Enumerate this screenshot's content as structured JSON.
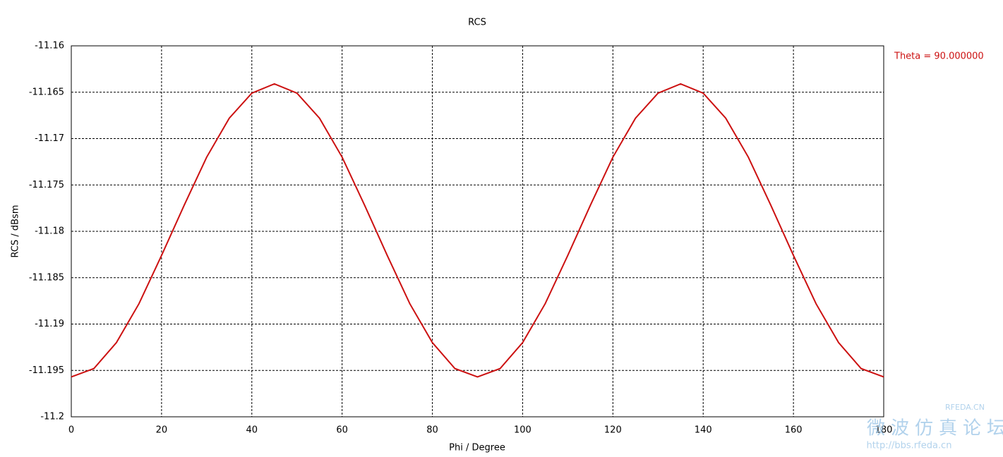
{
  "chart_data": {
    "type": "line",
    "title": "RCS",
    "x_label": "Phi / Degree",
    "y_label": "RCS / dBsm",
    "x": [
      0,
      5,
      10,
      15,
      20,
      25,
      30,
      35,
      40,
      45,
      50,
      55,
      60,
      65,
      70,
      75,
      80,
      85,
      90,
      95,
      100,
      105,
      110,
      115,
      120,
      125,
      130,
      135,
      140,
      145,
      150,
      155,
      160,
      165,
      170,
      175,
      180
    ],
    "series": [
      {
        "name": "Theta = 90.000000",
        "color": "#cc1111",
        "values": [
          -11.1957,
          -11.1948,
          -11.192,
          -11.1878,
          -11.1826,
          -11.1772,
          -11.172,
          -11.1678,
          -11.1651,
          -11.1641,
          -11.1651,
          -11.1678,
          -11.172,
          -11.1772,
          -11.1826,
          -11.1878,
          -11.192,
          -11.1948,
          -11.1957,
          -11.1948,
          -11.192,
          -11.1878,
          -11.1826,
          -11.1772,
          -11.172,
          -11.1678,
          -11.1651,
          -11.1641,
          -11.1651,
          -11.1678,
          -11.172,
          -11.1772,
          -11.1826,
          -11.1878,
          -11.192,
          -11.1948,
          -11.1957
        ]
      }
    ],
    "xlim": [
      0,
      180
    ],
    "xticks": [
      0,
      20,
      40,
      60,
      80,
      100,
      120,
      140,
      160,
      180
    ],
    "ylim": [
      -11.2,
      -11.16
    ],
    "yticks": [
      -11.2,
      -11.195,
      -11.19,
      -11.185,
      -11.18,
      -11.175,
      -11.17,
      -11.165,
      -11.16
    ],
    "grid": true,
    "legend": "right",
    "watermark": [
      "微波仿真论坛",
      "RFEDA.CN",
      "http://bbs.rfeda.cn"
    ]
  }
}
